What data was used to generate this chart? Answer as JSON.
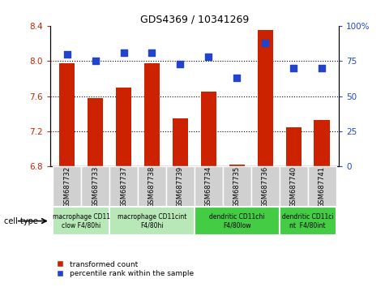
{
  "title": "GDS4369 / 10341269",
  "samples": [
    "GSM687732",
    "GSM687733",
    "GSM687737",
    "GSM687738",
    "GSM687739",
    "GSM687734",
    "GSM687735",
    "GSM687736",
    "GSM687740",
    "GSM687741"
  ],
  "transformed_count": [
    7.97,
    7.58,
    7.7,
    7.97,
    7.35,
    7.65,
    6.82,
    8.35,
    7.25,
    7.33
  ],
  "percentile_rank": [
    80,
    75,
    81,
    81,
    73,
    78,
    63,
    88,
    70,
    70
  ],
  "ylim_left": [
    6.8,
    8.4
  ],
  "ylim_right": [
    0,
    100
  ],
  "yticks_left": [
    6.8,
    7.2,
    7.6,
    8.0,
    8.4
  ],
  "yticks_right": [
    0,
    25,
    50,
    75,
    100
  ],
  "bar_color": "#cc2200",
  "dot_color": "#2244cc",
  "gsm_bg_color": "#d0d0d0",
  "cell_type_groups": [
    {
      "label": "macrophage CD11\nclow F4/80hi",
      "start": 0,
      "end": 2,
      "color": "#b8e8b8"
    },
    {
      "label": "macrophage CD11cint\nF4/80hi",
      "start": 2,
      "end": 5,
      "color": "#b8e8b8"
    },
    {
      "label": "dendritic CD11chi\nF4/80low",
      "start": 5,
      "end": 8,
      "color": "#44cc44"
    },
    {
      "label": "dendritic CD11ci\nnt  F4/80int",
      "start": 8,
      "end": 10,
      "color": "#44cc44"
    }
  ],
  "legend_red_label": "transformed count",
  "legend_blue_label": "percentile rank within the sample",
  "cell_type_label": "cell type"
}
